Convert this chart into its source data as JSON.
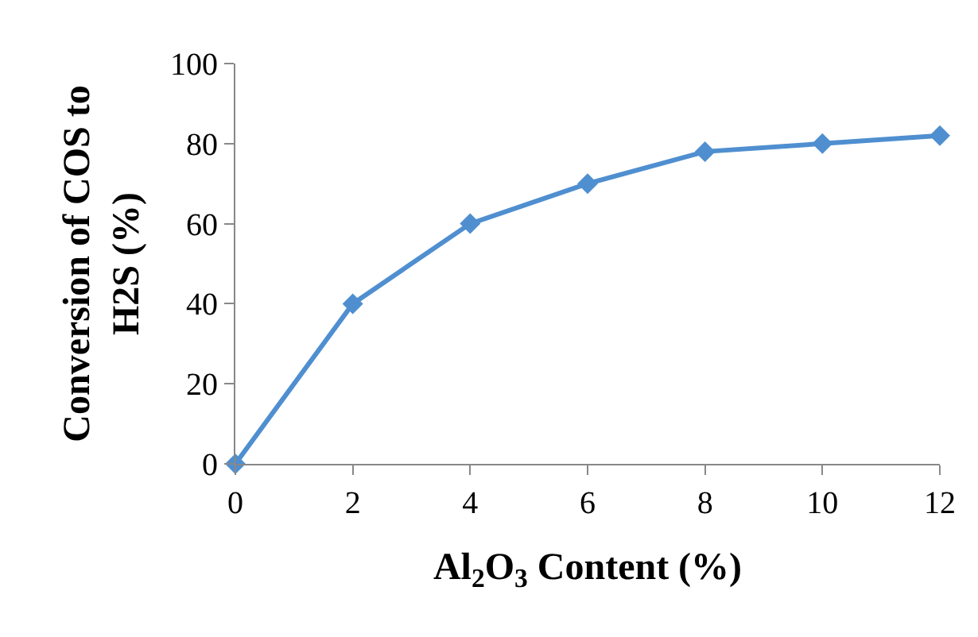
{
  "chart_data": {
    "type": "line",
    "xlabel": "Al$_{2}$O$_{3}$ Content (%)",
    "ylabel": "Conversion of COS to H2S (%)",
    "x": [
      0,
      2,
      4,
      6,
      8,
      10,
      12
    ],
    "series": [
      {
        "color": "#4f8fd0",
        "values": [
          0,
          40,
          60,
          70,
          78,
          80,
          82
        ]
      }
    ],
    "xlim": [
      0,
      12
    ],
    "xticks": [
      0,
      2,
      4,
      6,
      8,
      10,
      12
    ],
    "ylim": [
      0,
      100
    ],
    "yticks": [
      0,
      20,
      40,
      60,
      80,
      100
    ],
    "legend": false,
    "marker": "diamond",
    "line_style": "solid"
  }
}
